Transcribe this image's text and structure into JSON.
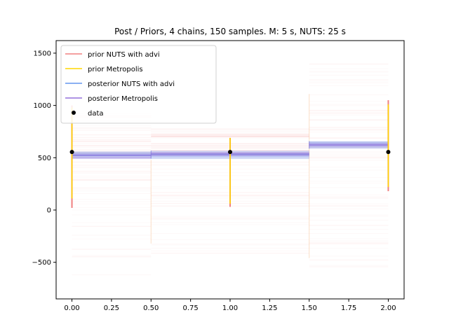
{
  "chart_data": {
    "type": "line",
    "title": "Post / Priors, 4 chains, 150 samples. M: 5 s, NUTS: 25 s",
    "xlabel": "",
    "ylabel": "",
    "xlim": [
      -0.1,
      2.1
    ],
    "ylim": [
      -850,
      1620
    ],
    "grid": false,
    "legend_position": "top-left",
    "x_ticks": [
      "0.00",
      "0.25",
      "0.50",
      "0.75",
      "1.00",
      "1.25",
      "1.50",
      "1.75",
      "2.00"
    ],
    "x_tick_values": [
      0.0,
      0.25,
      0.5,
      0.75,
      1.0,
      1.25,
      1.5,
      1.75,
      2.0
    ],
    "y_ticks": [
      "−500",
      "0",
      "500",
      "1000",
      "1500"
    ],
    "y_tick_values": [
      -500,
      0,
      500,
      1000,
      1500
    ],
    "segments": [
      {
        "x0": 0.0,
        "x1": 0.5
      },
      {
        "x0": 0.5,
        "x1": 1.5
      },
      {
        "x0": 1.5,
        "x1": 2.0
      }
    ],
    "series": [
      {
        "name": "prior NUTS with advi",
        "color": "#f08080",
        "style": "line",
        "band_values": [
          {
            "min": -620,
            "max": 1000,
            "center": 540
          },
          {
            "min": -420,
            "max": 780,
            "center": 530
          },
          {
            "min": -560,
            "max": 1410,
            "center": 600
          }
        ],
        "range_bars": [
          {
            "x": 0.0,
            "min": 20,
            "max": 1000
          },
          {
            "x": 1.0,
            "min": 30,
            "max": 690
          },
          {
            "x": 2.0,
            "min": 180,
            "max": 1050
          }
        ]
      },
      {
        "name": "prior Metropolis",
        "color": "#ffd700",
        "style": "line",
        "range_bars": [
          {
            "x": 0.0,
            "min": 110,
            "max": 980
          },
          {
            "x": 1.0,
            "min": 60,
            "max": 690
          },
          {
            "x": 2.0,
            "min": 220,
            "max": 1010
          }
        ]
      },
      {
        "name": "posterior NUTS with advi",
        "color": "#6495ed",
        "style": "line",
        "band_values": [
          {
            "min": 480,
            "max": 560,
            "center": 520
          },
          {
            "min": 490,
            "max": 570,
            "center": 530
          },
          {
            "min": 585,
            "max": 660,
            "center": 620
          }
        ]
      },
      {
        "name": "posterior Metropolis",
        "color": "#9370db",
        "style": "line",
        "band_values": [
          {
            "min": 490,
            "max": 555,
            "center": 520
          },
          {
            "min": 495,
            "max": 565,
            "center": 532
          },
          {
            "min": 590,
            "max": 655,
            "center": 620
          }
        ]
      },
      {
        "name": "data",
        "color": "#000000",
        "style": "point",
        "points": [
          {
            "x": 0.0,
            "y": 555
          },
          {
            "x": 1.0,
            "y": 555
          },
          {
            "x": 2.0,
            "y": 555
          }
        ]
      }
    ]
  }
}
